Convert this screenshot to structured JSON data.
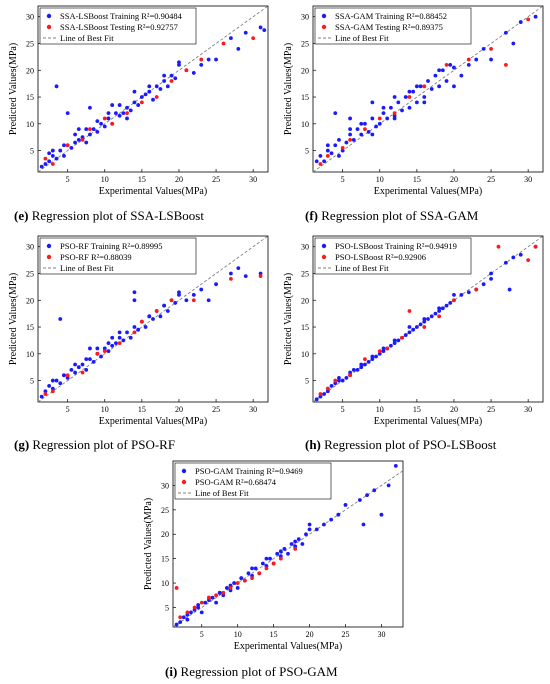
{
  "colors": {
    "training": "#1a1aff",
    "testing": "#ff1a1a",
    "fit_line": "#808080",
    "axis": "#000000"
  },
  "chart_data": [
    {
      "id": "e",
      "type": "scatter",
      "caption_letter": "(e)",
      "caption_text": " Regression plot of SSA-LSBoost",
      "xlabel": "Experimental Values(MPa)",
      "ylabel": "Predicted Values(MPa)",
      "xlim": [
        1,
        32
      ],
      "ylim": [
        1,
        32
      ],
      "xticks": [
        5,
        10,
        15,
        20,
        25,
        30
      ],
      "yticks": [
        5,
        10,
        15,
        20,
        25,
        30
      ],
      "legend_position": "top-left",
      "legend": [
        {
          "label": "SSA-LSBoost Training R²=0.90484",
          "marker": "dot",
          "color": "#1a1aff"
        },
        {
          "label": "SSA-LSBoost Testing R²=0.92757",
          "marker": "dot",
          "color": "#ff1a1a"
        },
        {
          "label": "Line of Best Fit",
          "marker": "dash",
          "color": "#808080"
        }
      ],
      "series": [
        {
          "role": "training",
          "x": [
            2,
            2.5,
            3,
            3.5,
            4,
            4.5,
            5,
            5.5,
            6,
            6.5,
            7,
            7.5,
            8,
            8.5,
            9,
            9.5,
            10,
            10.5,
            11,
            11.5,
            12,
            12.5,
            13,
            13.5,
            14,
            14.5,
            15,
            15.5,
            16,
            16.5,
            17,
            17.5,
            18,
            18.5,
            19,
            19.5,
            20,
            21,
            22,
            23,
            24,
            25,
            27,
            28,
            29,
            31,
            31.5,
            1.5,
            3,
            4.5,
            6,
            7.5,
            9,
            10.5,
            12,
            14,
            16,
            18,
            20,
            3.5,
            5,
            8,
            11,
            13,
            2.5,
            6.5
          ],
          "y": [
            2.5,
            3,
            4,
            3.5,
            5,
            4,
            6,
            5.5,
            6.5,
            7,
            7.5,
            6.5,
            8,
            9,
            8.5,
            10,
            9.5,
            11,
            10,
            12,
            11.5,
            12,
            13,
            12.5,
            14,
            13.5,
            15,
            15.5,
            16,
            14.5,
            17,
            16.5,
            18,
            17,
            19,
            18.5,
            21,
            20,
            19.5,
            21,
            22,
            22,
            26,
            24,
            27,
            28,
            27.5,
            2,
            5,
            6,
            8,
            9,
            10.5,
            12,
            13.5,
            16,
            17,
            19,
            21.5,
            17,
            12,
            13,
            13.5,
            11,
            4.5,
            9
          ]
        },
        {
          "role": "testing",
          "x": [
            2,
            3,
            5,
            7,
            8,
            10,
            11,
            13,
            15,
            17,
            19,
            21,
            23,
            26,
            30
          ],
          "y": [
            3.5,
            2.5,
            6,
            7,
            9,
            11,
            10,
            12,
            14,
            15,
            18,
            20,
            22,
            25,
            26
          ]
        }
      ]
    },
    {
      "id": "f",
      "type": "scatter",
      "caption_letter": "(f)",
      "caption_text": " Regression plot of SSA-GAM",
      "xlabel": "Experimental Values(MPa)",
      "ylabel": "Predicted Values(MPa)",
      "xlim": [
        1,
        32
      ],
      "ylim": [
        1,
        32
      ],
      "xticks": [
        5,
        10,
        15,
        20,
        25,
        30
      ],
      "yticks": [
        5,
        10,
        15,
        20,
        25,
        30
      ],
      "legend_position": "top-left",
      "legend": [
        {
          "label": "SSA-GAM Training R²=0.88452",
          "marker": "dot",
          "color": "#1a1aff"
        },
        {
          "label": "SSA-GAM Testing R²=0.89375",
          "marker": "dot",
          "color": "#ff1a1a"
        },
        {
          "label": "Line of Best Fit",
          "marker": "dash",
          "color": "#808080"
        }
      ],
      "series": [
        {
          "role": "training",
          "x": [
            2,
            2.5,
            3,
            3.5,
            4,
            4.5,
            5,
            5.5,
            6,
            6.5,
            7,
            7.5,
            8,
            8.5,
            9,
            9.5,
            10,
            10.5,
            11,
            11.5,
            12,
            12.5,
            13,
            13.5,
            14,
            14.5,
            15,
            15.5,
            16,
            16.5,
            17,
            17.5,
            18,
            18.5,
            19,
            19.5,
            20,
            21,
            22,
            23,
            24,
            25,
            27,
            28,
            29,
            31,
            1.5,
            3,
            4.5,
            6,
            7.5,
            9,
            10.5,
            12,
            14,
            16,
            18,
            20,
            4,
            6,
            9,
            12,
            15
          ],
          "y": [
            4,
            3,
            5,
            4.5,
            6,
            7,
            5,
            6.5,
            8,
            7,
            9,
            8,
            10,
            8.5,
            11,
            9.5,
            10,
            12,
            11,
            13,
            11.5,
            14,
            12.5,
            15,
            13,
            16,
            14,
            17,
            15,
            18,
            16.5,
            19,
            17,
            20,
            18,
            21,
            20.5,
            19,
            21,
            22,
            24,
            22,
            27,
            25,
            29,
            30,
            3,
            6,
            4,
            9,
            10,
            8,
            13,
            11,
            16,
            14,
            20,
            17,
            12,
            11,
            14,
            15,
            17
          ]
        },
        {
          "role": "testing",
          "x": [
            2,
            3,
            5,
            6,
            8,
            10,
            12,
            14,
            16,
            19,
            22,
            25,
            27,
            30
          ],
          "y": [
            2.5,
            4,
            5.5,
            7,
            9,
            11,
            12,
            15,
            17,
            21,
            22,
            24,
            21,
            29.5
          ]
        }
      ]
    },
    {
      "id": "g",
      "type": "scatter",
      "caption_letter": "(g)",
      "caption_text": " Regression plot of PSO-RF",
      "xlabel": "Experimental Values(MPa)",
      "ylabel": "Predicted Values(MPa)",
      "xlim": [
        1,
        32
      ],
      "ylim": [
        1,
        32
      ],
      "xticks": [
        5,
        10,
        15,
        20,
        25,
        30
      ],
      "yticks": [
        5,
        10,
        15,
        20,
        25,
        30
      ],
      "legend_position": "top-left",
      "legend": [
        {
          "label": "PSO-RF Training R²=0.89995",
          "marker": "dot",
          "color": "#1a1aff"
        },
        {
          "label": "PSO-RF R²=0.88039",
          "marker": "dot",
          "color": "#ff1a1a"
        },
        {
          "label": "Line of Best Fit",
          "marker": "dash",
          "color": "#808080"
        }
      ],
      "series": [
        {
          "role": "training",
          "x": [
            2,
            2.5,
            3,
            3.5,
            4,
            4.5,
            5,
            5.5,
            6,
            6.5,
            7,
            7.5,
            8,
            8.5,
            9,
            9.5,
            10,
            10.5,
            11,
            11.5,
            12,
            12.5,
            13,
            13.5,
            14,
            14.5,
            15,
            15.5,
            16,
            16.5,
            17,
            17.5,
            18,
            18.5,
            19,
            19.5,
            20,
            21,
            22,
            23,
            24,
            25,
            27,
            28,
            29,
            31,
            1.5,
            3,
            4.5,
            6,
            7.5,
            9,
            10.5,
            12,
            14,
            16,
            18,
            20,
            4,
            14,
            8,
            11
          ],
          "y": [
            3,
            4,
            3.5,
            5,
            4.5,
            6,
            5.5,
            7,
            6.5,
            7.5,
            8,
            7,
            9,
            8.5,
            10,
            9.5,
            11,
            10.5,
            11.5,
            12,
            13,
            12.5,
            14,
            13,
            15,
            14.5,
            16,
            15,
            17,
            16.5,
            18,
            17,
            19,
            18,
            20,
            19.5,
            21.5,
            20,
            21,
            22,
            20,
            23,
            25,
            26,
            24.5,
            25,
            2,
            5,
            6,
            8,
            9,
            11,
            12,
            14,
            21.5,
            17,
            19,
            21,
            16.5,
            20,
            11,
            13
          ]
        },
        {
          "role": "testing",
          "x": [
            2,
            3,
            5,
            7,
            9,
            10,
            12,
            14,
            15,
            17,
            19,
            22,
            27,
            31
          ],
          "y": [
            2.5,
            3,
            6,
            6.5,
            10,
            10.5,
            12,
            14,
            16,
            18,
            20,
            20,
            24,
            24.5
          ]
        }
      ]
    },
    {
      "id": "h",
      "type": "scatter",
      "caption_letter": "(h)",
      "caption_text": " Regression plot of PSO-LSBoost",
      "xlabel": "Experimental Values(MPa)",
      "ylabel": "Predicted Values(MPa)",
      "xlim": [
        1,
        32
      ],
      "ylim": [
        1,
        32
      ],
      "xticks": [
        5,
        10,
        15,
        20,
        25,
        30
      ],
      "yticks": [
        5,
        10,
        15,
        20,
        25,
        30
      ],
      "legend_position": "top-left",
      "legend": [
        {
          "label": "PSO-LSBoost Training R²=0.94919",
          "marker": "dot",
          "color": "#1a1aff"
        },
        {
          "label": "PSO-LSBoost R²=0.92906",
          "marker": "dot",
          "color": "#ff1a1a"
        },
        {
          "label": "Line of Best Fit",
          "marker": "dash",
          "color": "#808080"
        }
      ],
      "series": [
        {
          "role": "training",
          "x": [
            2,
            2.5,
            3,
            3.5,
            4,
            4.5,
            5,
            5.5,
            6,
            6.5,
            7,
            7.5,
            8,
            8.5,
            9,
            9.5,
            10,
            10.5,
            11,
            11.5,
            12,
            12.5,
            13,
            13.5,
            14,
            14.5,
            15,
            15.5,
            16,
            16.5,
            17,
            17.5,
            18,
            18.5,
            19,
            19.5,
            20,
            21,
            22,
            23,
            24,
            25,
            27,
            28,
            29,
            31,
            1.5,
            3,
            4.5,
            6,
            7.5,
            9,
            10.5,
            12,
            14,
            16,
            18,
            20,
            25,
            27.5
          ],
          "y": [
            2,
            2.5,
            3,
            4,
            4.5,
            5,
            5,
            5.5,
            6,
            7,
            7,
            7.5,
            8,
            8.5,
            9,
            9.5,
            10,
            10.5,
            11,
            11.5,
            12,
            12.5,
            13,
            13.5,
            14,
            14.5,
            15,
            15.5,
            16,
            16.5,
            17,
            17.5,
            18,
            18.5,
            19,
            19.5,
            20,
            21,
            21.5,
            22,
            23,
            24,
            27,
            28,
            28.5,
            30,
            1.5,
            3.5,
            5.5,
            6.5,
            8,
            9.5,
            11,
            12.5,
            15,
            16.5,
            18.5,
            21,
            25,
            22
          ]
        },
        {
          "role": "testing",
          "x": [
            2,
            3,
            4,
            6,
            8,
            10,
            11,
            13,
            14,
            16,
            18,
            20,
            23,
            26,
            30,
            31
          ],
          "y": [
            2.5,
            3.5,
            5,
            6,
            9,
            10.5,
            11,
            13,
            18,
            15,
            17,
            20,
            22,
            30,
            27.5,
            30
          ]
        }
      ]
    },
    {
      "id": "i",
      "type": "scatter",
      "caption_letter": "(i)",
      "caption_text": " Regression plot of PSO-GAM",
      "xlabel": "Experimental Values(MPa)",
      "ylabel": "Predicted Values(MPa)",
      "xlim": [
        1,
        33
      ],
      "ylim": [
        1,
        35
      ],
      "xticks": [
        5,
        10,
        15,
        20,
        25,
        30
      ],
      "yticks": [
        5,
        10,
        15,
        20,
        25,
        30
      ],
      "legend_position": "top-left",
      "legend": [
        {
          "label": "PSO-GAM Training R²=0.9469",
          "marker": "dot",
          "color": "#1a1aff"
        },
        {
          "label": "PSO-GAM R²=0.68474",
          "marker": "dot",
          "color": "#ff1a1a"
        },
        {
          "label": "Line of Best Fit",
          "marker": "dash",
          "color": "#808080"
        }
      ],
      "series": [
        {
          "role": "training",
          "x": [
            2,
            2.5,
            3,
            3.5,
            4,
            4.5,
            5,
            5.5,
            6,
            6.5,
            7,
            7.5,
            8,
            8.5,
            9,
            9.5,
            10,
            10.5,
            11,
            11.5,
            12,
            12.5,
            13,
            13.5,
            14,
            14.5,
            15,
            15.5,
            16,
            16.5,
            17,
            17.5,
            18,
            18.5,
            19,
            19.5,
            20,
            21,
            22,
            23,
            24,
            25,
            27,
            28,
            29,
            31,
            32,
            1.5,
            3,
            4.5,
            6,
            7.5,
            9,
            10.5,
            12,
            14,
            16,
            18,
            20,
            27.5,
            30
          ],
          "y": [
            2,
            3,
            2.5,
            4,
            4.5,
            5,
            4,
            6,
            6.5,
            7,
            6,
            8,
            7.5,
            9,
            8.5,
            10,
            9,
            11,
            10.5,
            12,
            11.5,
            13,
            12,
            14,
            13.5,
            15,
            14,
            16,
            15.5,
            17,
            16,
            18,
            17.5,
            19,
            18,
            20,
            22,
            21,
            22,
            23,
            24,
            26,
            27,
            28,
            29,
            30,
            34,
            1.5,
            3.5,
            5.5,
            7,
            8,
            9.5,
            11,
            13,
            15,
            16.5,
            18.5,
            21,
            22,
            24
          ]
        },
        {
          "role": "testing",
          "x": [
            1.5,
            2,
            3,
            4,
            5,
            6,
            7,
            8,
            9,
            10,
            11,
            12,
            13,
            14,
            15,
            16,
            18
          ],
          "y": [
            9,
            3,
            4,
            5,
            6,
            7,
            7.5,
            8,
            9,
            10,
            10.5,
            11,
            12,
            13,
            14,
            15,
            17
          ]
        }
      ]
    }
  ]
}
